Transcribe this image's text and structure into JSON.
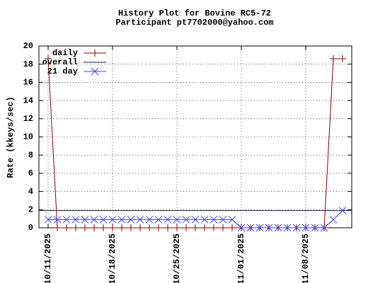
{
  "chart_data": {
    "type": "line",
    "title": "History Plot for Bovine RC5-72",
    "subtitle": "Participant pt7702000@yahoo.com",
    "y_label": "Rate (kkeys/sec)",
    "x": [
      "10/11/2025",
      "10/12/2025",
      "10/13/2025",
      "10/14/2025",
      "10/15/2025",
      "10/16/2025",
      "10/17/2025",
      "10/18/2025",
      "10/19/2025",
      "10/20/2025",
      "10/21/2025",
      "10/22/2025",
      "10/23/2025",
      "10/24/2025",
      "10/25/2025",
      "10/26/2025",
      "10/27/2025",
      "10/28/2025",
      "10/29/2025",
      "10/30/2025",
      "10/31/2025",
      "11/01/2025",
      "11/02/2025",
      "11/03/2025",
      "11/04/2025",
      "11/05/2025",
      "11/06/2025",
      "11/07/2025",
      "11/08/2025",
      "11/09/2025",
      "11/10/2025",
      "11/11/2025",
      "11/12/2025"
    ],
    "series": [
      {
        "name": "daily",
        "color": "#8b0000",
        "marker": "+",
        "values": [
          18.6,
          0,
          0,
          0,
          0,
          0,
          0,
          0,
          0,
          0,
          0,
          0,
          0,
          0,
          0,
          0,
          0,
          0,
          0,
          0,
          0,
          0,
          0,
          0,
          0,
          0,
          0,
          0,
          0,
          0,
          0,
          18.6,
          18.6
        ]
      },
      {
        "name": "overall",
        "color": "#1a1a40",
        "value": 1.9
      },
      {
        "name": "21 day",
        "color": "#4040ff",
        "marker": "x",
        "values": [
          0.9,
          0.9,
          0.9,
          0.9,
          0.9,
          0.9,
          0.9,
          0.9,
          0.9,
          0.9,
          0.9,
          0.9,
          0.9,
          0.9,
          0.9,
          0.9,
          0.9,
          0.9,
          0.9,
          0.9,
          0.9,
          0,
          0,
          0,
          0,
          0,
          0,
          0,
          0,
          0,
          0,
          0.9,
          1.9
        ]
      }
    ],
    "xlim": [
      "10/10/2025",
      "11/13/2025"
    ],
    "xticks": [
      "10/11/2025",
      "10/18/2025",
      "10/25/2025",
      "11/01/2025",
      "11/08/2025"
    ],
    "ylim": [
      0,
      20
    ],
    "yticks": [
      0,
      2,
      4,
      6,
      8,
      10,
      12,
      14,
      16,
      18,
      20
    ],
    "grid": true,
    "legend": "top-left"
  }
}
